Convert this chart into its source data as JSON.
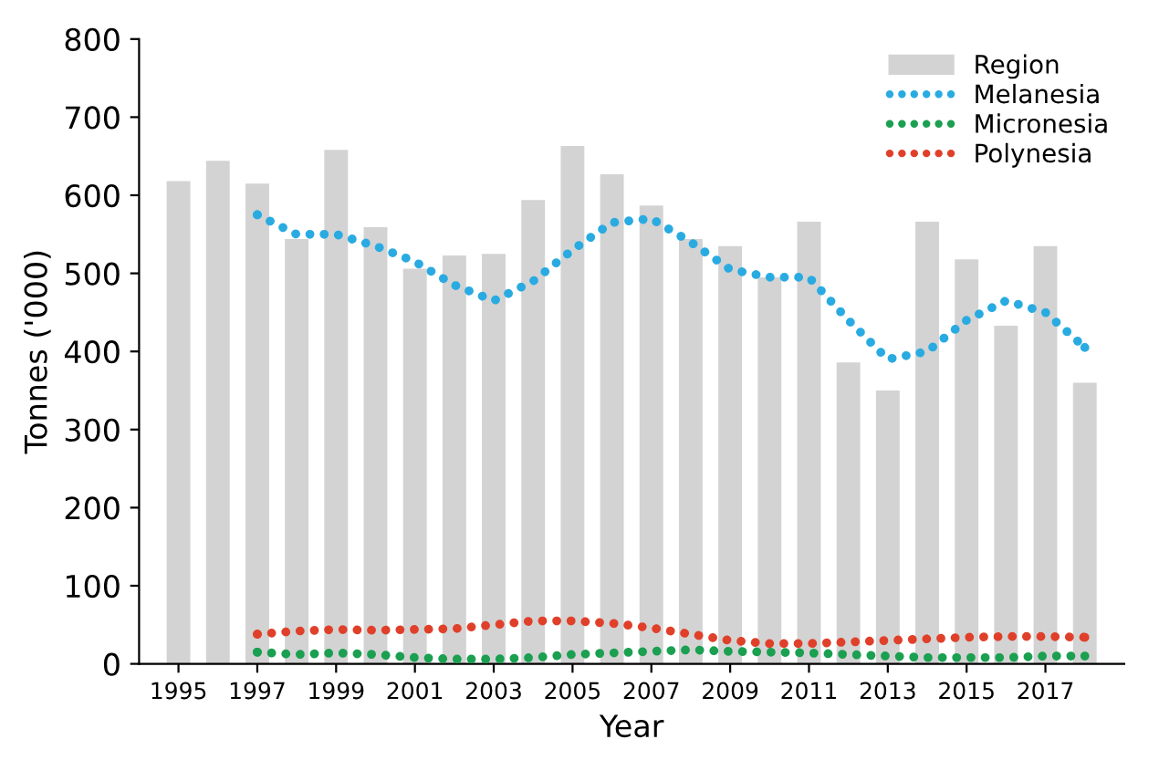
{
  "chart_data": {
    "type": "bar",
    "xlabel": "Year",
    "ylabel": "Tonnes ('000)",
    "x": [
      1995,
      1996,
      1997,
      1998,
      1999,
      2000,
      2001,
      2002,
      2003,
      2004,
      2005,
      2006,
      2007,
      2008,
      2009,
      2010,
      2011,
      2012,
      2013,
      2014,
      2015,
      2016,
      2017,
      2018
    ],
    "series": [
      {
        "name": "Region",
        "color": "#d3d3d3",
        "values": [
          618,
          644,
          615,
          544,
          658,
          559,
          506,
          523,
          525,
          594,
          663,
          627,
          587,
          544,
          535,
          495,
          566,
          386,
          350,
          566,
          518,
          433,
          535,
          360
        ]
      },
      {
        "name": "Melanesia",
        "type": "line",
        "color": "#29abe2",
        "x": [
          1997,
          1998,
          1999,
          2000,
          2001,
          2002,
          2003,
          2004,
          2005,
          2006,
          2007,
          2008,
          2009,
          2010,
          2011,
          2012,
          2013,
          2014,
          2015,
          2016,
          2017,
          2018
        ],
        "values": [
          575,
          550,
          550,
          535,
          515,
          485,
          465,
          490,
          530,
          565,
          570,
          540,
          505,
          495,
          495,
          440,
          390,
          400,
          440,
          465,
          450,
          405
        ]
      },
      {
        "name": "Micronesia",
        "type": "line",
        "color": "#1aa050",
        "x": [
          1997,
          1998,
          1999,
          2000,
          2001,
          2002,
          2003,
          2004,
          2005,
          2006,
          2007,
          2008,
          2009,
          2010,
          2011,
          2012,
          2013,
          2014,
          2015,
          2016,
          2017,
          2018
        ],
        "values": [
          15,
          12,
          14,
          12,
          8,
          6,
          6,
          8,
          12,
          14,
          16,
          18,
          16,
          15,
          14,
          12,
          10,
          8,
          8,
          8,
          10,
          10
        ]
      },
      {
        "name": "Polynesia",
        "type": "line",
        "color": "#e0402a",
        "x": [
          1997,
          1998,
          1999,
          2000,
          2001,
          2002,
          2003,
          2004,
          2005,
          2006,
          2007,
          2008,
          2009,
          2010,
          2011,
          2012,
          2013,
          2014,
          2015,
          2016,
          2017,
          2018
        ],
        "values": [
          38,
          42,
          44,
          43,
          44,
          45,
          50,
          55,
          55,
          52,
          46,
          38,
          30,
          26,
          26,
          28,
          30,
          32,
          34,
          35,
          35,
          34
        ]
      }
    ],
    "xlim": [
      1994,
      2019
    ],
    "xticks": [
      1995,
      1997,
      1999,
      2001,
      2003,
      2005,
      2007,
      2009,
      2011,
      2013,
      2015,
      2017
    ],
    "ylim": [
      0,
      800
    ],
    "yticks": [
      0,
      100,
      200,
      300,
      400,
      500,
      600,
      700,
      800
    ],
    "grid": false,
    "legend": "top right",
    "line_style": "dotted",
    "marker": "none"
  }
}
